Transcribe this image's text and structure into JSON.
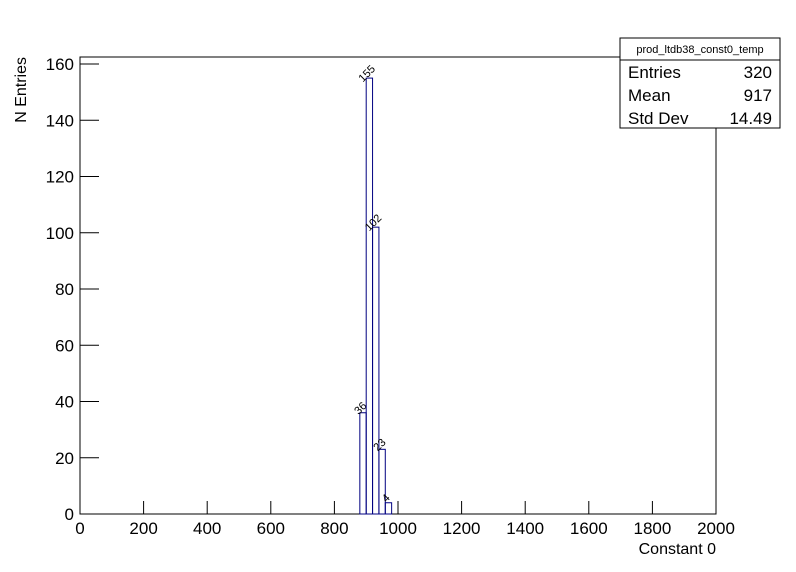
{
  "chart_data": {
    "type": "histogram",
    "x_label": "Constant 0",
    "y_label": "N Entries",
    "bins": [
      880,
      900,
      920,
      940,
      960,
      980
    ],
    "values": [
      36,
      155,
      102,
      23,
      4
    ],
    "color": "#000080",
    "xlim": [
      0,
      2000
    ],
    "xticks": [
      0,
      200,
      400,
      600,
      800,
      1000,
      1200,
      1400,
      1600,
      1800,
      2000
    ],
    "ylim": [
      0,
      162.5
    ],
    "yticks": [
      0,
      20,
      40,
      60,
      80,
      100,
      120,
      140,
      160
    ],
    "stats_box": {
      "title": "prod_ltdb38_const0_temp",
      "entries": [
        {
          "label": "Entries",
          "value": 320
        },
        {
          "label": "Mean",
          "value": 917
        },
        {
          "label": "Std Dev",
          "value": 14.49
        }
      ]
    }
  }
}
